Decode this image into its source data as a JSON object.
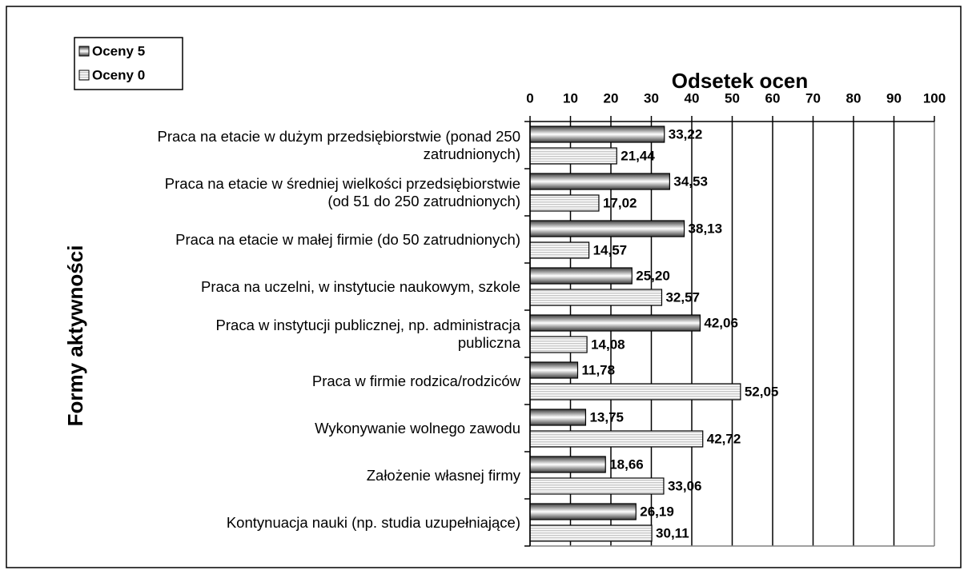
{
  "chart_data": {
    "type": "hbar",
    "title": "Odsetek ocen",
    "y_label": "Formy aktywności",
    "categories": [
      "Praca na etacie w dużym przedsiębiorstwie (ponad 250\nzatrudnionych)",
      "Praca na etacie w średniej wielkości przedsiębiorstwie\n(od 51 do 250 zatrudnionych)",
      "Praca na etacie w małej firmie (do 50 zatrudnionych)",
      "Praca na uczelni, w instytucie naukowym, szkole",
      "Praca w instytucji publicznej, np. administracja\npubliczna",
      "Praca w firmie rodzica/rodziców",
      "Wykonywanie wolnego zawodu",
      "Założenie własnej firmy",
      "Kontynuacja nauki (np. studia uzupełniające)"
    ],
    "series": [
      {
        "name": "Oceny 5",
        "color": "#3a3a3a",
        "values": [
          33.22,
          34.53,
          38.13,
          25.2,
          42.06,
          11.78,
          13.75,
          18.66,
          26.19
        ],
        "value_labels": [
          "33,22",
          "34,53",
          "38,13",
          "25,20",
          "42,06",
          "11,78",
          "13,75",
          "18,66",
          "26,19"
        ]
      },
      {
        "name": "Oceny 0",
        "color": "#c8c8c8",
        "values": [
          21.44,
          17.02,
          14.57,
          32.57,
          14.08,
          52.05,
          42.72,
          33.06,
          30.11
        ],
        "value_labels": [
          "21,44",
          "17,02",
          "14,57",
          "32,57",
          "14,08",
          "52,05",
          "42,72",
          "33,06",
          "30,11"
        ]
      }
    ],
    "xlim": [
      0,
      100
    ],
    "xticks": [
      0,
      10,
      20,
      30,
      40,
      50,
      60,
      70,
      80,
      90,
      100
    ],
    "grid": true,
    "legend": "top-left"
  }
}
